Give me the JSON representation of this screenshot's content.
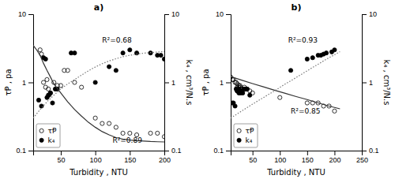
{
  "chart_data": [
    {
      "type": "scatter",
      "title": "a)",
      "xlabel": "Turbidity , NTU",
      "ylabel": "τⱣ , pa",
      "y2label": "k₄ , cm³/N.s",
      "xlim": [
        10,
        200
      ],
      "xticks": [
        50,
        100,
        150,
        200
      ],
      "ylim": [
        0.1,
        10
      ],
      "yticks": [
        0.1,
        1,
        10
      ],
      "y2lim": [
        0.1,
        10
      ],
      "y2ticks": [
        0.1,
        1,
        10
      ],
      "log": "y",
      "grid": false,
      "legend": "lower left",
      "series": [
        {
          "name": "τⱣ",
          "type": "scatter",
          "marker": "open_circle",
          "color": "black",
          "x": [
            20,
            22,
            25,
            28,
            30,
            32,
            33,
            35,
            40,
            45,
            50,
            55,
            60,
            70,
            80,
            100,
            110,
            120,
            130,
            140,
            150,
            160,
            180,
            190,
            200
          ],
          "values": [
            3.0,
            2.6,
            1.0,
            0.85,
            1.1,
            0.8,
            0.65,
            0.7,
            1.0,
            0.9,
            0.9,
            1.5,
            1.5,
            1.0,
            0.85,
            0.3,
            0.25,
            0.25,
            0.22,
            0.18,
            0.18,
            0.17,
            0.18,
            0.18,
            0.16
          ]
        },
        {
          "name": "k₄",
          "type": "scatter",
          "marker": "circle",
          "color": "black",
          "axis": "y2",
          "x": [
            18,
            22,
            25,
            28,
            30,
            32,
            35,
            38,
            42,
            45,
            65,
            70,
            100,
            120,
            130,
            140,
            150,
            160,
            180,
            190,
            195,
            200
          ],
          "values": [
            0.55,
            0.45,
            2.3,
            2.2,
            0.6,
            0.65,
            0.7,
            0.5,
            0.8,
            0.8,
            2.7,
            2.7,
            1.0,
            1.7,
            1.5,
            2.7,
            3.0,
            2.7,
            2.7,
            2.5,
            2.5,
            2.2
          ]
        },
        {
          "type": "line",
          "line_style": "solid",
          "color": "#333333",
          "x": [
            10,
            15,
            20,
            25,
            30,
            35,
            40,
            50,
            60,
            70,
            80,
            90,
            100,
            110,
            120,
            130,
            140,
            150,
            160,
            170,
            180,
            190,
            200
          ],
          "values": [
            3.5,
            3.0,
            2.5,
            1.9,
            1.5,
            1.2,
            0.95,
            0.7,
            0.52,
            0.4,
            0.32,
            0.26,
            0.22,
            0.19,
            0.17,
            0.155,
            0.148,
            0.143,
            0.14,
            0.138,
            0.136,
            0.135,
            0.134
          ]
        },
        {
          "type": "line",
          "line_style": "dotted",
          "color": "#777777",
          "axis": "y2",
          "x": [
            10,
            20,
            30,
            40,
            50,
            60,
            70,
            80,
            90,
            100,
            110,
            120,
            130,
            140,
            150,
            160,
            170,
            180,
            190,
            200
          ],
          "values": [
            0.3,
            0.4,
            0.52,
            0.65,
            0.8,
            0.95,
            1.1,
            1.28,
            1.48,
            1.68,
            1.88,
            2.06,
            2.22,
            2.38,
            2.5,
            2.6,
            2.68,
            2.74,
            2.79,
            2.83
          ]
        }
      ],
      "annotations": [
        {
          "text": "R²=0.89",
          "x": 125,
          "y": 0.13
        },
        {
          "text": "R²=0.68",
          "x": 110,
          "y": 3.8,
          "axis": "y2"
        }
      ]
    },
    {
      "type": "scatter",
      "title": "b)",
      "xlabel": "Turbidity , NTU",
      "ylabel": "τⱣ , pa",
      "y2label": "k₄ , cm³/N.s",
      "xlim": [
        10,
        250
      ],
      "xticks": [
        50,
        100,
        150,
        200,
        250
      ],
      "ylim": [
        0.1,
        10
      ],
      "yticks": [
        0.1,
        1,
        10
      ],
      "y2lim": [
        0.1,
        10
      ],
      "y2ticks": [
        0.1,
        1,
        10
      ],
      "log": "y",
      "grid": false,
      "legend": "lower left",
      "series": [
        {
          "name": "τⱣ",
          "type": "scatter",
          "marker": "open_circle",
          "color": "black",
          "x": [
            10,
            13,
            15,
            18,
            20,
            22,
            22,
            25,
            25,
            27,
            28,
            28,
            30,
            32,
            35,
            38,
            40,
            45,
            50,
            100,
            150,
            160,
            170,
            180,
            190,
            200
          ],
          "values": [
            1.2,
            1.1,
            1.1,
            1.0,
            1.0,
            0.95,
            0.85,
            0.9,
            0.85,
            0.9,
            0.85,
            0.8,
            0.8,
            0.8,
            0.85,
            0.8,
            0.8,
            0.75,
            0.7,
            0.6,
            0.5,
            0.5,
            0.5,
            0.45,
            0.45,
            0.38
          ]
        },
        {
          "name": "k₄",
          "type": "scatter",
          "marker": "circle",
          "color": "black",
          "axis": "y2",
          "x": [
            13,
            15,
            18,
            20,
            22,
            22,
            25,
            25,
            28,
            30,
            32,
            35,
            38,
            40,
            45,
            120,
            150,
            160,
            170,
            175,
            180,
            185,
            195,
            200
          ],
          "values": [
            0.5,
            0.5,
            0.45,
            0.8,
            0.75,
            0.75,
            0.8,
            0.7,
            0.7,
            0.75,
            0.7,
            0.8,
            0.8,
            0.8,
            0.65,
            1.5,
            2.2,
            2.3,
            2.5,
            2.5,
            2.6,
            2.7,
            2.8,
            3.0
          ]
        },
        {
          "type": "line",
          "line_style": "solid",
          "color": "#333333",
          "x": [
            10,
            30,
            50,
            70,
            90,
            110,
            130,
            150,
            170,
            190,
            210
          ],
          "values": [
            1.22,
            1.08,
            0.96,
            0.86,
            0.77,
            0.69,
            0.62,
            0.56,
            0.5,
            0.45,
            0.41
          ]
        },
        {
          "type": "line",
          "line_style": "dotted",
          "color": "#777777",
          "axis": "y2",
          "x": [
            10,
            30,
            50,
            70,
            90,
            110,
            130,
            150,
            170,
            190,
            210
          ],
          "values": [
            0.3,
            0.38,
            0.48,
            0.6,
            0.75,
            0.95,
            1.18,
            1.48,
            1.85,
            2.3,
            2.82
          ]
        }
      ],
      "annotations": [
        {
          "text": "R²=0.85",
          "x": 120,
          "y": 0.35
        },
        {
          "text": "R²=0.93",
          "x": 115,
          "y": 3.8,
          "axis": "y2"
        }
      ]
    }
  ]
}
